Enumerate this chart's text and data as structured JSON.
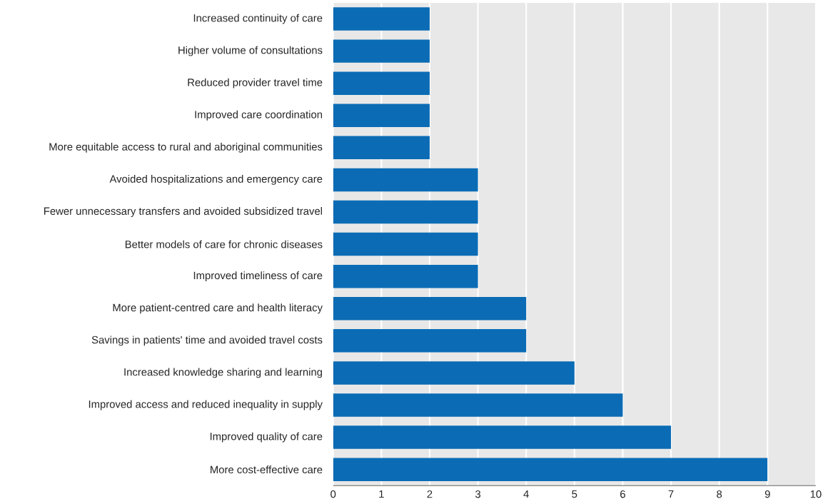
{
  "chart_data": {
    "type": "bar",
    "orientation": "horizontal",
    "categories": [
      "Increased continuity of care",
      "Higher volume of consultations",
      "Reduced provider travel time",
      "Improved care coordination",
      "More equitable access to rural and aboriginal communities",
      "Avoided hospitalizations and emergency care",
      "Fewer unnecessary transfers and avoided subsidized travel",
      "Better models of care for chronic diseases",
      "Improved timeliness of care",
      "More patient-centred care and health literacy",
      "Savings in patients' time and avoided travel costs",
      "Increased knowledge sharing and learning",
      "Improved access and reduced inequality in supply",
      "Improved quality of care",
      "More cost-effective care"
    ],
    "values": [
      2,
      2,
      2,
      2,
      2,
      3,
      3,
      3,
      3,
      4,
      4,
      5,
      6,
      7,
      9
    ],
    "color": "#0b6cb5",
    "xlim": [
      0,
      10
    ],
    "xticks": [
      0,
      1,
      2,
      3,
      4,
      5,
      6,
      7,
      8,
      9,
      10
    ],
    "grid": "x"
  }
}
